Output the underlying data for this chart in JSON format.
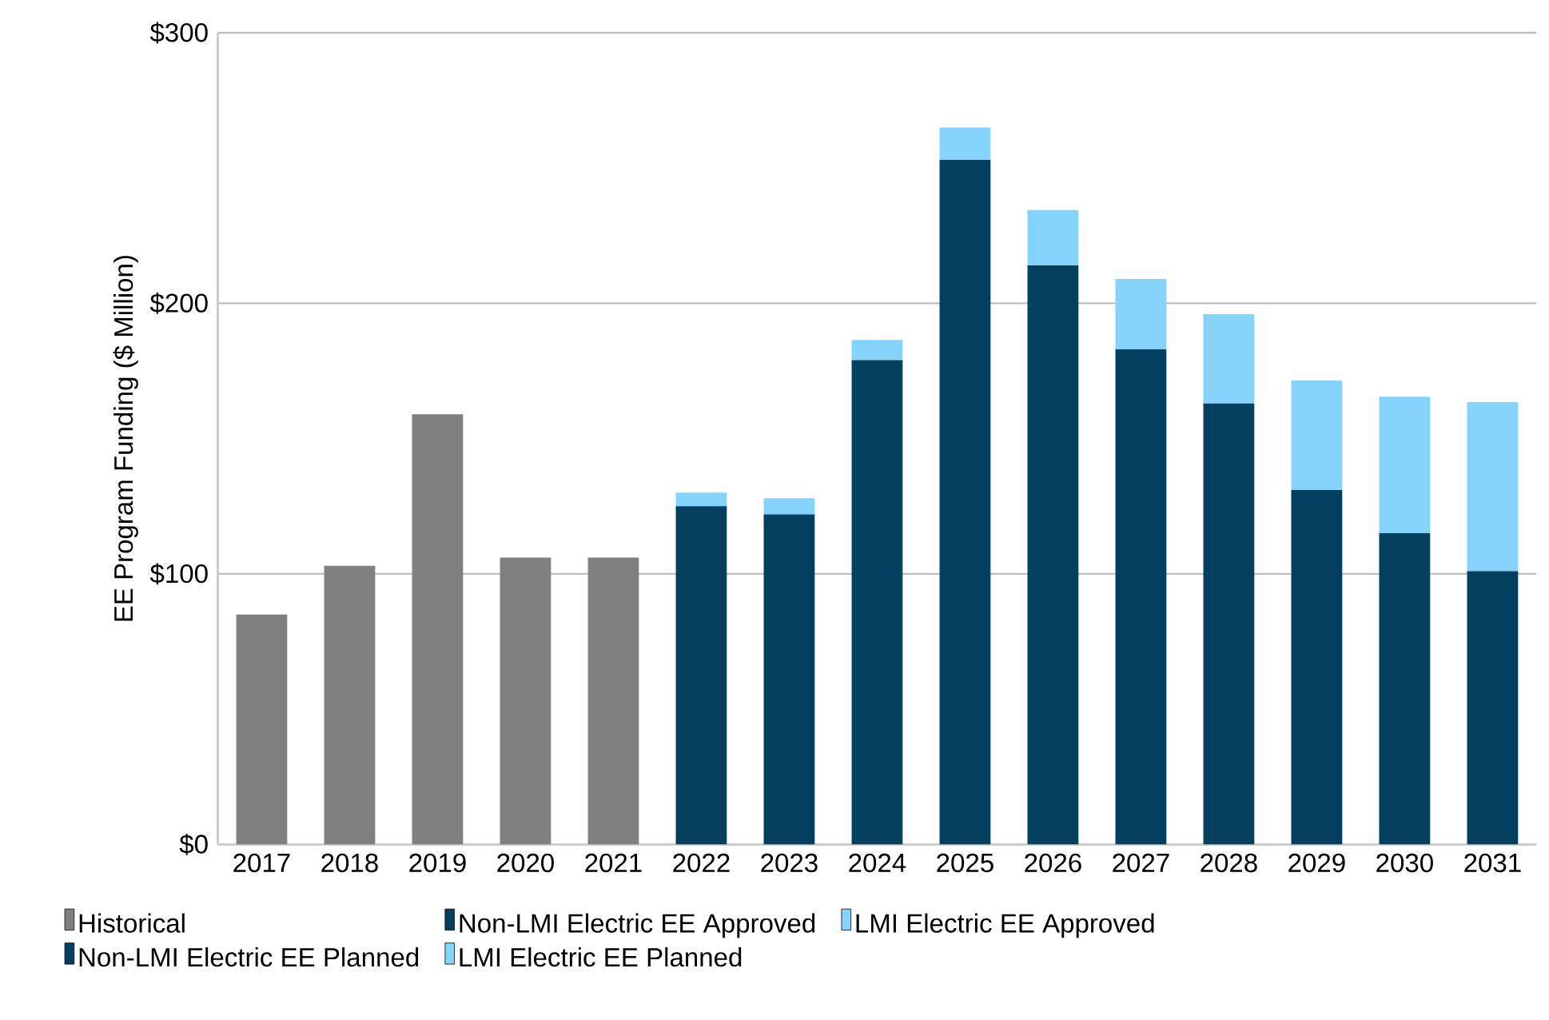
{
  "chart_data": {
    "type": "bar",
    "stacked": true,
    "ylabel": "EE Program Funding ($ Million)",
    "categories": [
      "2017",
      "2018",
      "2019",
      "2020",
      "2021",
      "2022",
      "2023",
      "2024",
      "2025",
      "2026",
      "2027",
      "2028",
      "2029",
      "2030",
      "2031"
    ],
    "series": [
      {
        "name": "Historical",
        "color": "#808080",
        "values": [
          85,
          103,
          159,
          106,
          106,
          null,
          null,
          null,
          null,
          null,
          null,
          null,
          null,
          null,
          null
        ]
      },
      {
        "name": "Non-LMI Electric EE Approved",
        "color": "#033f5e",
        "values": [
          null,
          null,
          null,
          null,
          null,
          125,
          122,
          179,
          253,
          null,
          null,
          null,
          null,
          null,
          null
        ]
      },
      {
        "name": "LMI Electric EE Approved",
        "color": "#85d3fb",
        "values": [
          null,
          null,
          null,
          null,
          null,
          5,
          6,
          7.5,
          12,
          null,
          null,
          null,
          null,
          null,
          null
        ]
      },
      {
        "name": "Non-LMI Electric EE Planned",
        "color": "#033f5e",
        "values": [
          null,
          null,
          null,
          null,
          null,
          null,
          null,
          null,
          null,
          214,
          183,
          163,
          131,
          115,
          101
        ]
      },
      {
        "name": "LMI Electric EE Planned",
        "color": "#85d3fb",
        "values": [
          null,
          null,
          null,
          null,
          null,
          null,
          null,
          null,
          null,
          20.5,
          26,
          33,
          40.5,
          50.5,
          62.5
        ]
      }
    ],
    "ylim": [
      0,
      300
    ],
    "yticks": [
      {
        "value": 0,
        "label": "$0"
      },
      {
        "value": 100,
        "label": "$100"
      },
      {
        "value": 200,
        "label": "$200"
      },
      {
        "value": 300,
        "label": "$300"
      }
    ],
    "grid": "y",
    "legend": "bottom"
  }
}
